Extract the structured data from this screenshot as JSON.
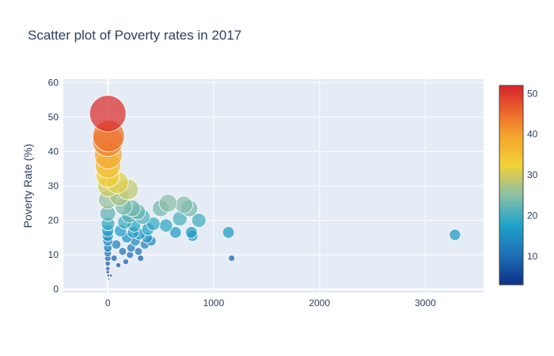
{
  "chart_data": {
    "type": "scatter",
    "title": "Scatter plot of Poverty rates in 2017",
    "xlabel": "",
    "ylabel": "Poverty Rate (%)",
    "xlim": [
      -420,
      3550
    ],
    "ylim": [
      -1,
      61
    ],
    "x_ticks": [
      0,
      1000,
      2000,
      3000
    ],
    "y_ticks": [
      0,
      10,
      20,
      30,
      40,
      50,
      60
    ],
    "grid": true,
    "marker_sizing": "bubble size and color both encode poverty rate",
    "colorscale": {
      "range": [
        3,
        52
      ],
      "ticks": [
        10,
        20,
        30,
        40,
        50
      ],
      "stops": [
        [
          0.0,
          "#0b3088"
        ],
        [
          0.15,
          "#1d6fb6"
        ],
        [
          0.3,
          "#1fa3c9"
        ],
        [
          0.45,
          "#8cbfa6"
        ],
        [
          0.6,
          "#f2d136"
        ],
        [
          0.75,
          "#f5a32d"
        ],
        [
          0.88,
          "#ea602c"
        ],
        [
          1.0,
          "#d7212b"
        ]
      ]
    },
    "points": [
      {
        "x": 0,
        "y": 51
      },
      {
        "x": 8,
        "y": 44.5
      },
      {
        "x": 0,
        "y": 43
      },
      {
        "x": 5,
        "y": 39
      },
      {
        "x": 2,
        "y": 36
      },
      {
        "x": 0,
        "y": 33
      },
      {
        "x": 4,
        "y": 30
      },
      {
        "x": 0,
        "y": 26
      },
      {
        "x": 0,
        "y": 22
      },
      {
        "x": 2,
        "y": 19
      },
      {
        "x": 0,
        "y": 17
      },
      {
        "x": 0,
        "y": 15.5
      },
      {
        "x": 0,
        "y": 14
      },
      {
        "x": 0,
        "y": 12
      },
      {
        "x": 0,
        "y": 10.5
      },
      {
        "x": 0,
        "y": 9
      },
      {
        "x": 0,
        "y": 7.5
      },
      {
        "x": 0,
        "y": 6
      },
      {
        "x": 0,
        "y": 5
      },
      {
        "x": 5,
        "y": 4
      },
      {
        "x": 10,
        "y": 3
      },
      {
        "x": 20,
        "y": 2
      },
      {
        "x": 30,
        "y": 4
      },
      {
        "x": 90,
        "y": 31
      },
      {
        "x": 190,
        "y": 29
      },
      {
        "x": 110,
        "y": 27
      },
      {
        "x": 150,
        "y": 24
      },
      {
        "x": 230,
        "y": 23.5
      },
      {
        "x": 280,
        "y": 22.5
      },
      {
        "x": 200,
        "y": 21.5
      },
      {
        "x": 330,
        "y": 21
      },
      {
        "x": 160,
        "y": 19.5
      },
      {
        "x": 250,
        "y": 18.5
      },
      {
        "x": 380,
        "y": 17.5
      },
      {
        "x": 300,
        "y": 16
      },
      {
        "x": 180,
        "y": 15
      },
      {
        "x": 260,
        "y": 14
      },
      {
        "x": 350,
        "y": 13
      },
      {
        "x": 220,
        "y": 12
      },
      {
        "x": 290,
        "y": 11
      },
      {
        "x": 310,
        "y": 9
      },
      {
        "x": 120,
        "y": 17
      },
      {
        "x": 80,
        "y": 13
      },
      {
        "x": 140,
        "y": 11
      },
      {
        "x": 60,
        "y": 9
      },
      {
        "x": 100,
        "y": 7
      },
      {
        "x": 170,
        "y": 8
      },
      {
        "x": 210,
        "y": 10
      },
      {
        "x": 240,
        "y": 16.5
      },
      {
        "x": 370,
        "y": 15
      },
      {
        "x": 430,
        "y": 19
      },
      {
        "x": 410,
        "y": 14
      },
      {
        "x": 500,
        "y": 23.5
      },
      {
        "x": 570,
        "y": 25
      },
      {
        "x": 720,
        "y": 24.5
      },
      {
        "x": 770,
        "y": 23.5
      },
      {
        "x": 680,
        "y": 20.5
      },
      {
        "x": 860,
        "y": 20
      },
      {
        "x": 550,
        "y": 18.5
      },
      {
        "x": 640,
        "y": 16.5
      },
      {
        "x": 790,
        "y": 16.5
      },
      {
        "x": 800,
        "y": 15.5
      },
      {
        "x": 1140,
        "y": 16.5
      },
      {
        "x": 1170,
        "y": 9
      },
      {
        "x": 3280,
        "y": 15.8
      }
    ]
  }
}
